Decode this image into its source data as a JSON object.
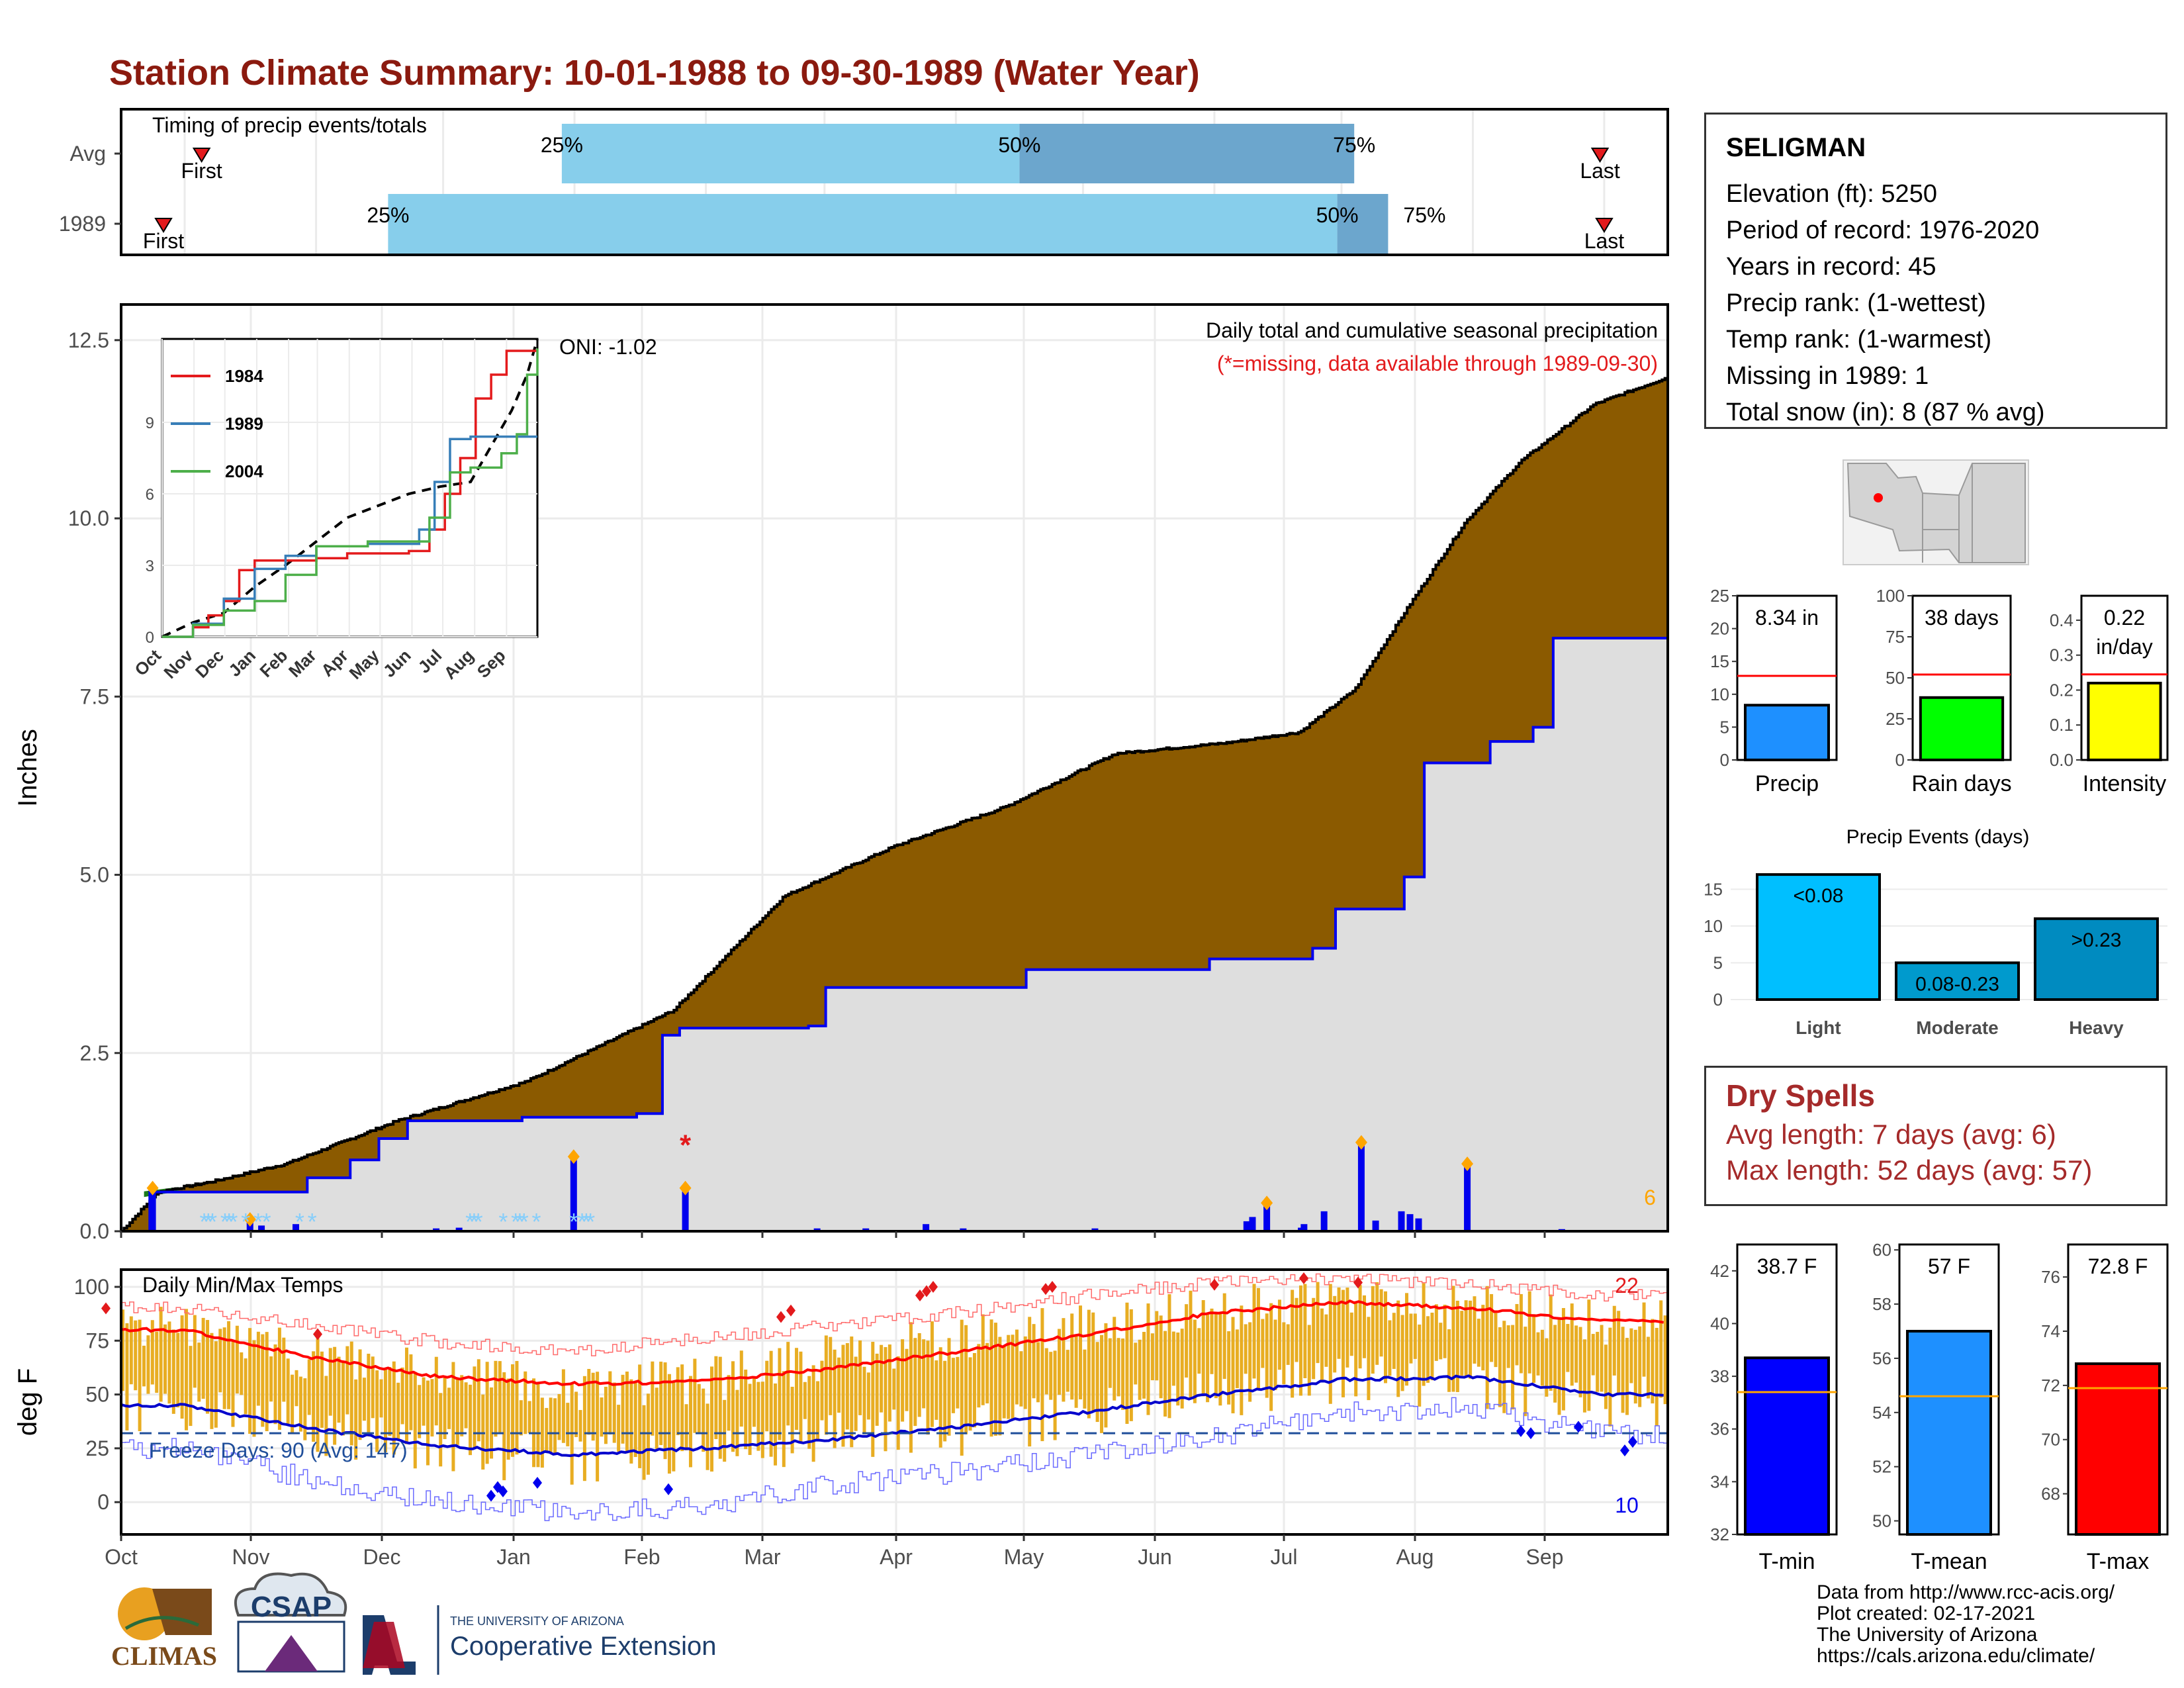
{
  "title": "Station Climate Summary: 10-01-1988 to 09-30-1989 (Water Year)",
  "colors": {
    "title": "#8b1a0f",
    "cumulative_fill": "#8b5a00",
    "grey_area": "#dedede",
    "accent_blue": "#0000ee",
    "temp_bar": "#e8ad22"
  },
  "station": {
    "name": "SELIGMAN",
    "elevation": "Elevation (ft): 5250",
    "period": "Period of record: 1976-2020",
    "years": "Years in record: 45",
    "precip_rank": "Precip rank:  (1-wettest)",
    "temp_rank": "Temp rank:  (1-warmest)",
    "missing": "Missing in 1989: 1",
    "snow": "Total snow (in): 8 (87 % avg)"
  },
  "dry_spells": {
    "title": "Dry Spells",
    "avg": "Avg length: 7 days (avg: 6)",
    "max": "Max length: 52 days (avg: 57)"
  },
  "credits": {
    "line1": "Data from http://www.rcc-acis.org/",
    "line2": "Plot created: 02-17-2021",
    "line3": "The University of Arizona",
    "line4": "https://cals.arizona.edu/climate/"
  },
  "logos": {
    "climas": "CLIMAS",
    "csap": "CSAP",
    "ua_small": "THE UNIVERSITY OF ARIZONA",
    "ua_big": "Cooperative Extension"
  },
  "chart_data": [
    {
      "type": "bar",
      "title": "Timing of precip events/totals",
      "rows": [
        {
          "name": "Avg",
          "first": "Oct 20",
          "p25": "Jan 13",
          "p50": "May 1",
          "p75": "Jul 19",
          "last": "Sep 15",
          "first_label": "First",
          "last_label": "Last"
        },
        {
          "name": "1989",
          "first": "Oct 11",
          "p25": "Dec 3",
          "p50": "Jul 15",
          "p75": "Jul 27",
          "last": "Sep 16",
          "first_label": "First",
          "last_label": "Last"
        }
      ],
      "pct_labels": [
        "25%",
        "50%",
        "75%"
      ]
    },
    {
      "type": "area",
      "title": "Daily total and cumulative seasonal precipitation",
      "subtitle": "(*=missing, data available through 1989-09-30)",
      "ylabel": "Inches",
      "ylim": [
        0,
        13
      ],
      "yticks": [
        "0.0",
        "2.5",
        "5.0",
        "7.5",
        "10.0",
        "12.5"
      ],
      "months": [
        "Oct",
        "Nov",
        "Dec",
        "Jan",
        "Feb",
        "Mar",
        "Apr",
        "May",
        "Jun",
        "Jul",
        "Aug",
        "Sep"
      ],
      "avg_cumulative": [
        [
          0,
          0
        ],
        [
          10,
          0.55
        ],
        [
          25,
          0.7
        ],
        [
          45,
          0.95
        ],
        [
          75,
          1.55
        ],
        [
          110,
          2.1
        ],
        [
          120,
          2.35
        ],
        [
          150,
          3.1
        ],
        [
          180,
          4.7
        ],
        [
          210,
          5.4
        ],
        [
          240,
          5.95
        ],
        [
          270,
          6.7
        ],
        [
          300,
          6.85
        ],
        [
          320,
          7.0
        ],
        [
          335,
          7.6
        ],
        [
          350,
          8.8
        ],
        [
          365,
          9.95
        ],
        [
          380,
          10.8
        ],
        [
          400,
          11.6
        ],
        [
          420,
          11.98
        ]
      ],
      "obs_cumulative": [
        [
          0,
          0
        ],
        [
          10,
          0.55
        ],
        [
          60,
          0.55
        ],
        [
          65,
          0.75
        ],
        [
          80,
          1.0
        ],
        [
          90,
          1.3
        ],
        [
          100,
          1.55
        ],
        [
          140,
          1.6
        ],
        [
          180,
          1.65
        ],
        [
          189,
          2.75
        ],
        [
          195,
          2.85
        ],
        [
          240,
          2.88
        ],
        [
          246,
          3.42
        ],
        [
          290,
          3.42
        ],
        [
          316,
          3.67
        ],
        [
          380,
          3.82
        ],
        [
          410,
          3.82
        ],
        [
          416,
          3.97
        ],
        [
          424,
          4.52
        ],
        [
          443,
          4.52
        ],
        [
          448,
          4.97
        ],
        [
          455,
          6.57
        ],
        [
          478,
          6.87
        ],
        [
          493,
          7.07
        ],
        [
          500,
          8.32
        ],
        [
          540,
          8.32
        ]
      ],
      "obs_cumulative_note": "day index from Oct 1 scaled to chart (0-365 -> 0-1)",
      "daily_precip": [
        [
          11,
          0.56
        ],
        [
          45,
          0.12
        ],
        [
          49,
          0.08
        ],
        [
          61,
          0.1
        ],
        [
          110,
          0.04
        ],
        [
          118,
          0.05
        ],
        [
          158,
          1.0
        ],
        [
          197,
          0.56
        ],
        [
          243,
          0.04
        ],
        [
          260,
          0.04
        ],
        [
          281,
          0.1
        ],
        [
          294,
          0.04
        ],
        [
          340,
          0.04
        ],
        [
          393,
          0.14
        ],
        [
          395,
          0.2
        ],
        [
          400,
          0.35
        ],
        [
          412,
          0.05
        ],
        [
          413,
          0.1
        ],
        [
          420,
          0.28
        ],
        [
          433,
          1.2
        ],
        [
          438,
          0.15
        ],
        [
          447,
          0.28
        ],
        [
          450,
          0.24
        ],
        [
          453,
          0.18
        ],
        [
          470,
          0.9
        ],
        [
          503,
          0.03
        ]
      ],
      "missing_markers": [
        [
          197,
          1.0
        ]
      ],
      "snow_markers": [
        20,
        21,
        22,
        25,
        26,
        27,
        30,
        33,
        35,
        43,
        46,
        84,
        85,
        86,
        92,
        95,
        96,
        97,
        100,
        109,
        111,
        112,
        113
      ],
      "count_label": "6",
      "inset": {
        "type": "line",
        "oni": "ONI: -1.02",
        "yticks": [
          "0",
          "3",
          "6",
          "9"
        ],
        "months": [
          "Oct",
          "Nov",
          "Dec",
          "Jan",
          "Feb",
          "Mar",
          "Apr",
          "May",
          "Jun",
          "Jul",
          "Aug",
          "Sep"
        ],
        "series": [
          {
            "name": "1984",
            "color": "#e41a1c",
            "values": [
              [
                0,
                0
              ],
              [
                30,
                0.4
              ],
              [
                45,
                0.9
              ],
              [
                60,
                1.5
              ],
              [
                75,
                2.8
              ],
              [
                90,
                3.2
              ],
              [
                120,
                3.2
              ],
              [
                150,
                3.3
              ],
              [
                180,
                3.5
              ],
              [
                210,
                3.5
              ],
              [
                240,
                3.6
              ],
              [
                260,
                4.5
              ],
              [
                275,
                6.0
              ],
              [
                290,
                7.5
              ],
              [
                305,
                10.0
              ],
              [
                320,
                11.0
              ],
              [
                335,
                12.0
              ],
              [
                365,
                12.0
              ]
            ]
          },
          {
            "name": "1989",
            "color": "#377eb8",
            "values": [
              [
                0,
                0
              ],
              [
                30,
                0.55
              ],
              [
                60,
                1.6
              ],
              [
                90,
                2.85
              ],
              [
                120,
                3.4
              ],
              [
                150,
                3.8
              ],
              [
                200,
                3.9
              ],
              [
                250,
                4.5
              ],
              [
                265,
                6.5
              ],
              [
                280,
                8.3
              ],
              [
                300,
                8.4
              ],
              [
                330,
                8.4
              ],
              [
                365,
                8.4
              ]
            ]
          },
          {
            "name": "2004",
            "color": "#4daf4a",
            "values": [
              [
                0,
                0
              ],
              [
                30,
                0.5
              ],
              [
                60,
                1.1
              ],
              [
                90,
                1.5
              ],
              [
                120,
                2.6
              ],
              [
                150,
                3.8
              ],
              [
                200,
                4.0
              ],
              [
                240,
                4.0
              ],
              [
                260,
                5.0
              ],
              [
                280,
                6.9
              ],
              [
                300,
                7.1
              ],
              [
                330,
                7.7
              ],
              [
                345,
                8.5
              ],
              [
                355,
                11.0
              ],
              [
                365,
                12.1
              ]
            ]
          }
        ],
        "avg_dashed": [
          [
            0,
            0
          ],
          [
            30,
            0.6
          ],
          [
            60,
            1.0
          ],
          [
            90,
            2.1
          ],
          [
            120,
            3.0
          ],
          [
            150,
            4.0
          ],
          [
            180,
            5.0
          ],
          [
            210,
            5.5
          ],
          [
            240,
            6.0
          ],
          [
            270,
            6.3
          ],
          [
            300,
            6.5
          ],
          [
            320,
            8.0
          ],
          [
            340,
            9.5
          ],
          [
            355,
            11.0
          ],
          [
            365,
            12.5
          ]
        ]
      }
    },
    {
      "type": "line",
      "title": "Daily Min/Max Temps",
      "ylabel": "deg F",
      "ylim": [
        -15,
        108
      ],
      "yticks": [
        "0",
        "25",
        "50",
        "75",
        "100"
      ],
      "months": [
        "Oct",
        "Nov",
        "Dec",
        "Jan",
        "Feb",
        "Mar",
        "Apr",
        "May",
        "Jun",
        "Jul",
        "Aug",
        "Sep"
      ],
      "freeze_label": "Freeze Days: 90 (Avg: 147)",
      "freeze_line": 32,
      "count_high": "22",
      "count_low": "10",
      "avg_max_monthly": [
        80,
        67,
        58,
        55,
        56,
        62,
        70,
        78,
        88,
        93,
        90,
        84
      ],
      "avg_min_monthly": [
        45,
        34,
        26,
        22,
        25,
        29,
        35,
        42,
        50,
        57,
        58,
        50
      ],
      "rec_max_monthly": [
        90,
        82,
        74,
        70,
        76,
        82,
        88,
        96,
        102,
        104,
        101,
        96
      ],
      "rec_min_monthly": [
        25,
        10,
        0,
        -5,
        -2,
        8,
        14,
        22,
        30,
        42,
        44,
        32
      ],
      "obs_max_monthly": [
        81,
        66,
        59,
        52,
        56,
        68,
        76,
        82,
        89,
        94,
        90,
        84
      ],
      "obs_min_monthly": [
        44,
        33,
        24,
        20,
        21,
        30,
        33,
        41,
        49,
        56,
        55,
        47
      ]
    },
    {
      "type": "bar",
      "title": "Precip",
      "label": "8.34 in",
      "value": 8.34,
      "avg": 12.8,
      "yticks": [
        "0",
        "5",
        "10",
        "15",
        "20",
        "25"
      ],
      "ylim": [
        0,
        25
      ],
      "color": "#1e90ff"
    },
    {
      "type": "bar",
      "title": "Rain days",
      "label": "38 days",
      "value": 38,
      "avg": 52,
      "yticks": [
        "0",
        "25",
        "50",
        "75",
        "100"
      ],
      "ylim": [
        0,
        100
      ],
      "color": "#00ff00"
    },
    {
      "type": "bar",
      "title": "Intensity",
      "label_line1": "0.22",
      "label_line2": "in/day",
      "value": 0.22,
      "avg": 0.245,
      "yticks": [
        "0.0",
        "0.1",
        "0.2",
        "0.3",
        "0.4"
      ],
      "ylim": [
        0,
        0.47
      ],
      "color": "#ffff00"
    },
    {
      "type": "bar",
      "title": "Precip Events (days)",
      "categories": [
        "Light",
        "Moderate",
        "Heavy"
      ],
      "values": [
        17,
        5,
        11
      ],
      "bar_labels": [
        "<0.08",
        "0.08-0.23",
        ">0.23"
      ],
      "colors": [
        "#00bfff",
        "#009acd",
        "#008bc0"
      ],
      "yticks": [
        "0",
        "5",
        "10",
        "15"
      ],
      "ylim": [
        0,
        18
      ]
    },
    {
      "type": "bar",
      "title": "T-min",
      "label": "38.7 F",
      "value": 38.7,
      "avg": 37.4,
      "yticks": [
        "32",
        "34",
        "36",
        "38",
        "40",
        "42"
      ],
      "ylim": [
        32,
        43
      ],
      "color": "#0000ff"
    },
    {
      "type": "bar",
      "title": "T-mean",
      "label": "57 F",
      "value": 57,
      "avg": 54.6,
      "yticks": [
        "50",
        "52",
        "54",
        "56",
        "58",
        "60"
      ],
      "ylim": [
        49.5,
        60.2
      ],
      "color": "#1e90ff"
    },
    {
      "type": "bar",
      "title": "T-max",
      "label": "72.8 F",
      "value": 72.8,
      "avg": 71.9,
      "yticks": [
        "68",
        "70",
        "72",
        "74",
        "76"
      ],
      "ylim": [
        66.5,
        77.2
      ],
      "color": "#ff0000"
    }
  ]
}
